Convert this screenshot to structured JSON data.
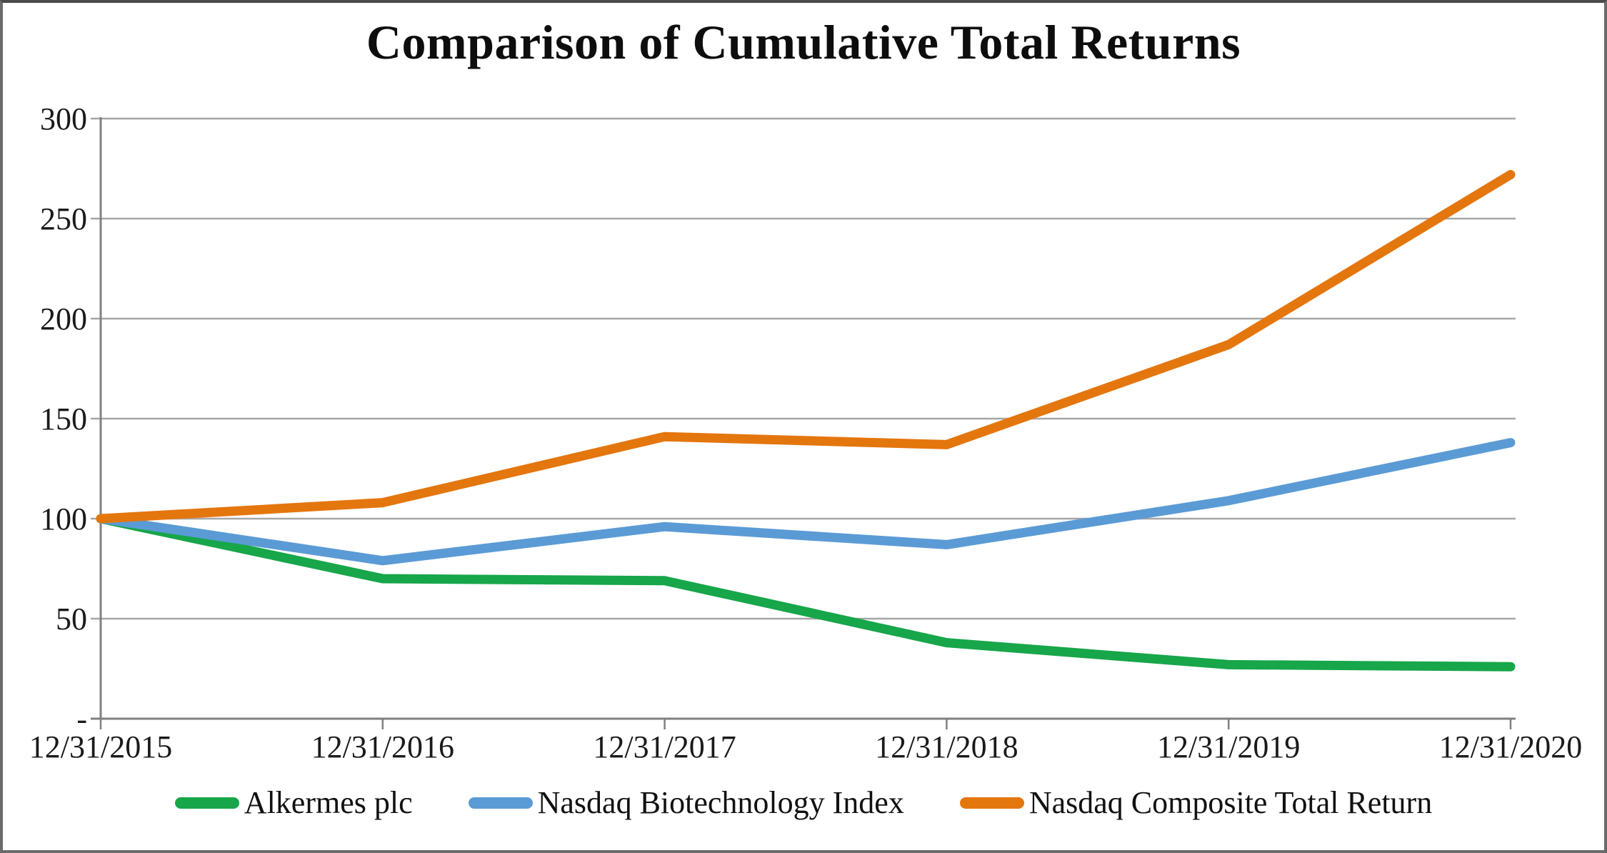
{
  "figure": {
    "title": "Comparison of Cumulative Total Returns"
  },
  "chart_data": {
    "type": "line",
    "title": "Comparison of Cumulative Total Returns",
    "categories": [
      "12/31/2015",
      "12/31/2016",
      "12/31/2017",
      "12/31/2018",
      "12/31/2019",
      "12/31/2020"
    ],
    "series": [
      {
        "name": "Alkermes plc",
        "color": "#17A64A",
        "values": [
          100,
          70,
          69,
          38,
          27,
          26
        ]
      },
      {
        "name": "Nasdaq Biotechnology Index",
        "color": "#5B9BD5",
        "values": [
          100,
          79,
          96,
          87,
          109,
          138
        ]
      },
      {
        "name": "Nasdaq Composite Total Return",
        "color": "#E4760E",
        "values": [
          100,
          108,
          141,
          137,
          187,
          272
        ]
      }
    ],
    "y_axis": {
      "min": 0,
      "max": 300,
      "tick_interval": 50,
      "tick_values": [
        300,
        250,
        200,
        150,
        100,
        50,
        0
      ],
      "tick_labels": [
        "300",
        "250",
        "200",
        "150",
        "100",
        "50",
        "-"
      ]
    },
    "xlabel": "",
    "ylabel": "",
    "grid": "horizontal",
    "grid_color": "#A6A6A6",
    "axis_color": "#808080",
    "legend_position": "bottom"
  }
}
